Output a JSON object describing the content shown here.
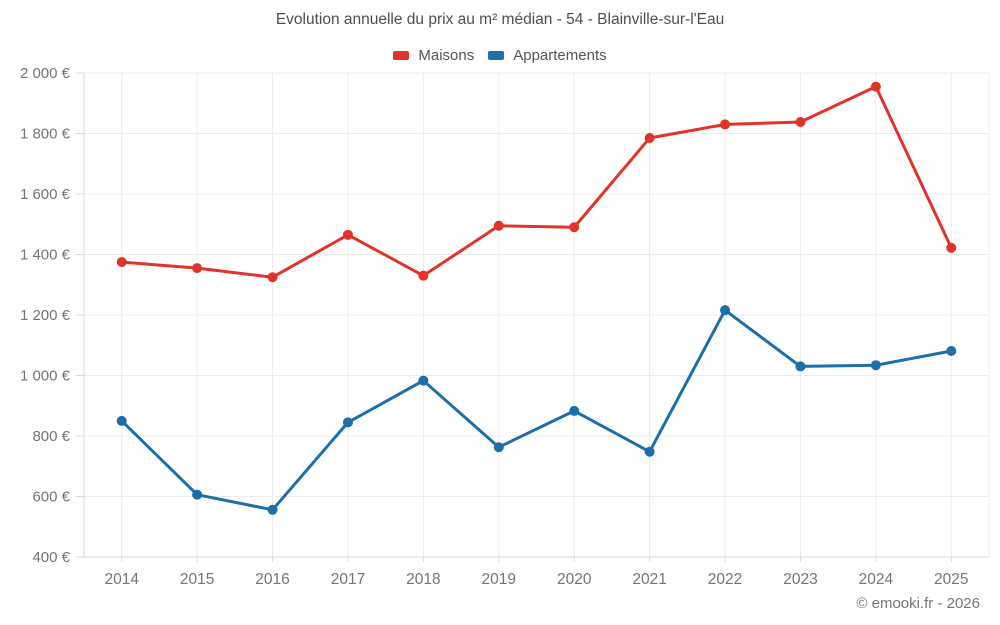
{
  "title": "Evolution annuelle du prix au m² médian - 54 - Blainville-sur-l'Eau",
  "attribution": "© emooki.fr - 2026",
  "colors": {
    "maisons": "#e23329",
    "appartements": "#1c6fa9",
    "grid": "#ececec",
    "axis": "#dadada",
    "tick_label": "#757575",
    "title_text": "#4f4f4f"
  },
  "chart_data": {
    "type": "line",
    "title": "Evolution annuelle du prix au m² médian - 54 - Blainville-sur-l'Eau",
    "x": [
      2014,
      2015,
      2016,
      2017,
      2018,
      2019,
      2020,
      2021,
      2022,
      2023,
      2024,
      2025
    ],
    "series": [
      {
        "name": "Maisons",
        "color": "#e23329",
        "values": [
          1375,
          1355,
          1325,
          1465,
          1330,
          1495,
          1490,
          1785,
          1830,
          1838,
          1955,
          1422
        ]
      },
      {
        "name": "Appartements",
        "color": "#1c6fa9",
        "values": [
          850,
          606,
          556,
          845,
          983,
          763,
          883,
          748,
          1216,
          1030,
          1034,
          1081
        ]
      }
    ],
    "xlabel": "",
    "ylabel": "",
    "y_unit": "€",
    "ylim": [
      400,
      2000
    ],
    "ytick_step": 200,
    "grid": true,
    "legend_position": "top"
  }
}
